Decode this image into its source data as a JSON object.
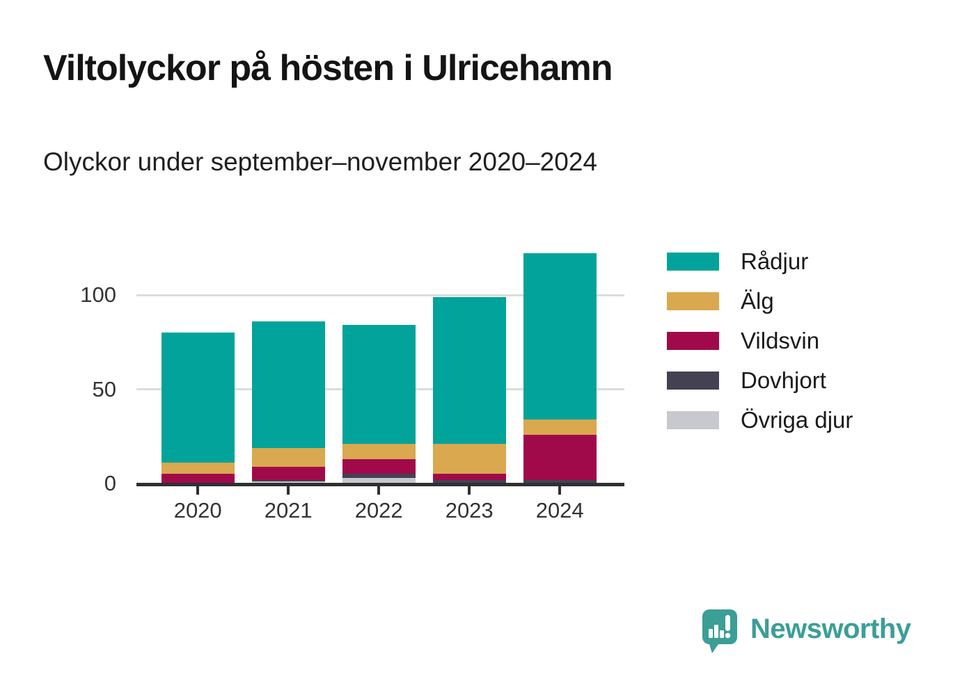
{
  "header": {
    "title": "Viltolyckor på hösten i Ulricehamn",
    "subtitle": "Olyckor under september–november 2020–2024"
  },
  "chart_data": {
    "type": "bar",
    "stacked": true,
    "title": "Viltolyckor på hösten i Ulricehamn",
    "subtitle": "Olyckor under september–november 2020–2024",
    "categories": [
      "2020",
      "2021",
      "2022",
      "2023",
      "2024"
    ],
    "series": [
      {
        "name": "Rådjur",
        "color": "#02a39a",
        "values": [
          69,
          67,
          63,
          78,
          88
        ]
      },
      {
        "name": "Älg",
        "color": "#d9a84f",
        "values": [
          6,
          10,
          8,
          16,
          8
        ]
      },
      {
        "name": "Vildsvin",
        "color": "#a00a4b",
        "values": [
          5,
          7,
          8,
          3,
          24
        ]
      },
      {
        "name": "Dovhjort",
        "color": "#434152",
        "values": [
          0,
          1,
          2,
          2,
          2
        ]
      },
      {
        "name": "Övriga djur",
        "color": "#c7c9cf",
        "values": [
          0,
          1,
          3,
          0,
          0
        ]
      }
    ],
    "stack_order_bottom_to_top": [
      "Övriga djur",
      "Dovhjort",
      "Vildsvin",
      "Älg",
      "Rådjur"
    ],
    "xlabel": "",
    "ylabel": "",
    "yticks": [
      0,
      50,
      100
    ],
    "ylim": [
      0,
      130
    ],
    "grid": "horizontal",
    "legend_position": "right",
    "colors": {
      "axis": "#2f2f2f",
      "gridline": "#dcdcdc",
      "tick_label": "#333333"
    }
  },
  "footer": {
    "brand": "Newsworthy",
    "brand_color": "#3b9e97",
    "logo_icon": "speech-bubble-bar-chart-exclamation"
  }
}
